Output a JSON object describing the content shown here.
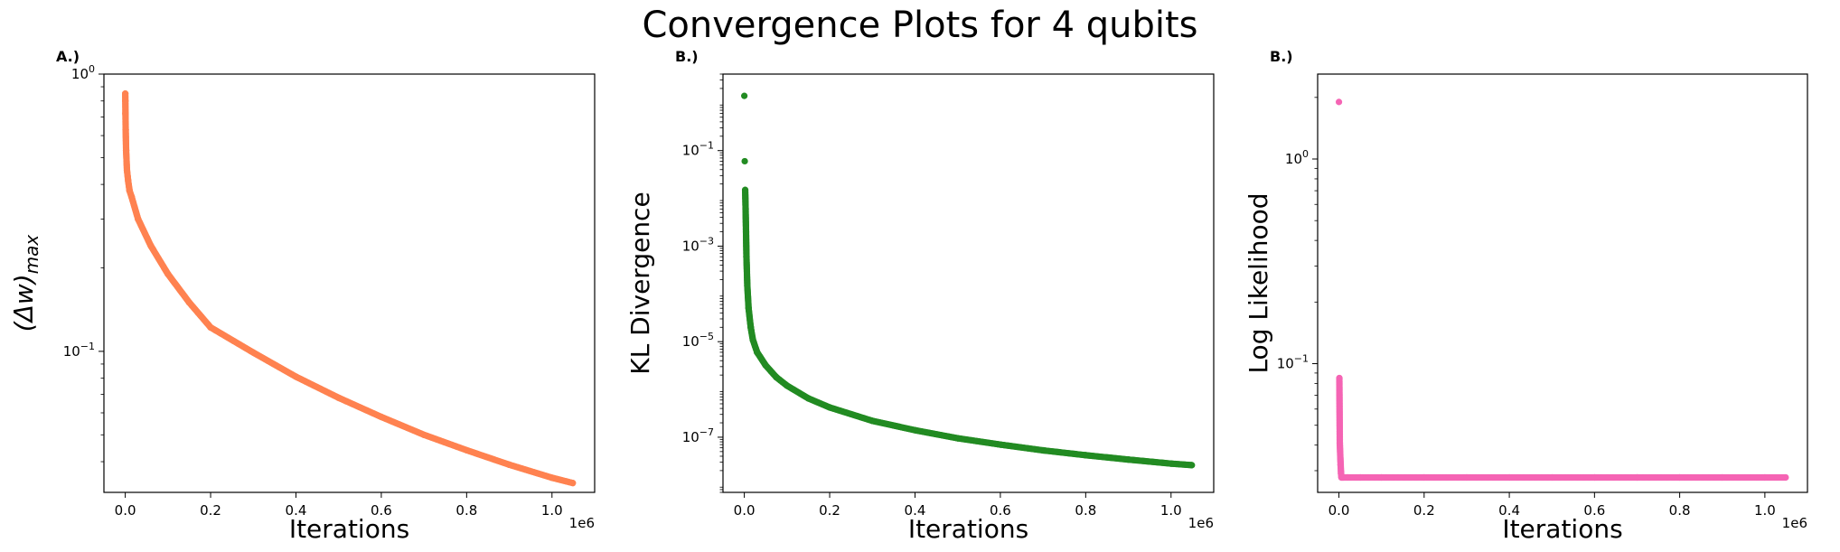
{
  "suptitle": "Convergence Plots for 4 qubits",
  "chart_data": [
    {
      "type": "scatter",
      "panel_label": "A.)",
      "xlabel": "Iterations",
      "ylabel": "(Δw)max",
      "ylabel_parts": {
        "base": "(Δw)",
        "sub": "max"
      },
      "x_offset_label": "1e6",
      "xscale": "linear",
      "yscale": "log",
      "xlim": [
        -50000,
        1100000
      ],
      "ylim": [
        0.031,
        1.0
      ],
      "x_ticks": [
        0,
        0.2,
        0.4,
        0.6,
        0.8,
        1.0
      ],
      "x_tick_labels": [
        "0.0",
        "0.2",
        "0.4",
        "0.6",
        "0.8",
        "1.0"
      ],
      "y_major_ticks": [
        0.1,
        1.0
      ],
      "y_tick_labels": [
        {
          "base": "10",
          "exp": "−1"
        },
        {
          "base": "10",
          "exp": "0"
        }
      ],
      "color": "#ff8250",
      "series": [
        {
          "x": [
            0,
            200,
            500,
            1000,
            2000,
            4000,
            7000,
            10000,
            15000,
            30000,
            60000,
            100000,
            150000,
            200000,
            300000,
            400000,
            500000,
            600000,
            700000,
            800000,
            900000,
            1000000,
            1048576
          ],
          "y": [
            0.85,
            0.8,
            0.72,
            0.63,
            0.53,
            0.45,
            0.41,
            0.38,
            0.36,
            0.3,
            0.24,
            0.19,
            0.15,
            0.122,
            0.099,
            0.081,
            0.068,
            0.058,
            0.05,
            0.044,
            0.039,
            0.035,
            0.0335
          ]
        }
      ],
      "grid": false
    },
    {
      "type": "scatter",
      "panel_label": "B.)",
      "xlabel": "Iterations",
      "ylabel": "KL Divergence",
      "x_offset_label": "1e6",
      "xscale": "linear",
      "yscale": "log",
      "xlim": [
        -50000,
        1100000
      ],
      "ylim": [
        7e-09,
        4
      ],
      "x_ticks": [
        0,
        0.2,
        0.4,
        0.6,
        0.8,
        1.0
      ],
      "x_tick_labels": [
        "0.0",
        "0.2",
        "0.4",
        "0.6",
        "0.8",
        "1.0"
      ],
      "y_major_ticks": [
        1e-07,
        1e-05,
        0.001,
        0.1
      ],
      "y_tick_labels": [
        {
          "base": "10",
          "exp": "−7"
        },
        {
          "base": "10",
          "exp": "−5"
        },
        {
          "base": "10",
          "exp": "−3"
        },
        {
          "base": "10",
          "exp": "−1"
        }
      ],
      "color": "#228b22",
      "series": [
        {
          "x": [
            0,
            1000,
            2000,
            3000,
            4000,
            5000,
            7000,
            10000,
            15000,
            20000,
            30000,
            50000,
            75000,
            100000,
            150000,
            200000,
            300000,
            400000,
            500000,
            600000,
            700000,
            800000,
            900000,
            1000000,
            1048576
          ],
          "y": [
            1.4,
            0.06,
            0.015,
            0.006,
            0.002,
            0.0006,
            0.00015,
            5e-05,
            2e-05,
            1.1e-05,
            6e-06,
            3.2e-06,
            1.8e-06,
            1.2e-06,
            6.5e-07,
            4.2e-07,
            2.2e-07,
            1.4e-07,
            9.5e-08,
            7e-08,
            5.3e-08,
            4.2e-08,
            3.4e-08,
            2.8e-08,
            2.6e-08
          ]
        }
      ],
      "grid": false
    },
    {
      "type": "scatter",
      "panel_label": "B.)",
      "xlabel": "Iterations",
      "ylabel": "Log Likelihood",
      "x_offset_label": "1e6",
      "xscale": "linear",
      "yscale": "log",
      "xlim": [
        -50000,
        1100000
      ],
      "ylim": [
        0.0235,
        2.6
      ],
      "x_ticks": [
        0,
        0.2,
        0.4,
        0.6,
        0.8,
        1.0
      ],
      "x_tick_labels": [
        "0.0",
        "0.2",
        "0.4",
        "0.6",
        "0.8",
        "1.0"
      ],
      "y_major_ticks": [
        0.1,
        1.0
      ],
      "y_tick_labels": [
        {
          "base": "10",
          "exp": "−1"
        },
        {
          "base": "10",
          "exp": "0"
        }
      ],
      "color": "#f564b4",
      "series": [
        {
          "x": [
            0,
            1000,
            2000,
            3000,
            4000,
            5000,
            6000,
            8000,
            10000,
            20000,
            50000,
            100000,
            200000,
            300000,
            400000,
            500000,
            600000,
            700000,
            800000,
            900000,
            1000000,
            1048576
          ],
          "y": [
            1.9,
            0.085,
            0.041,
            0.036,
            0.032,
            0.029,
            0.0278,
            0.0278,
            0.0278,
            0.0278,
            0.0278,
            0.0278,
            0.0278,
            0.0278,
            0.0278,
            0.0278,
            0.0278,
            0.0278,
            0.0278,
            0.0278,
            0.0278,
            0.0278
          ]
        }
      ],
      "grid": false
    }
  ]
}
